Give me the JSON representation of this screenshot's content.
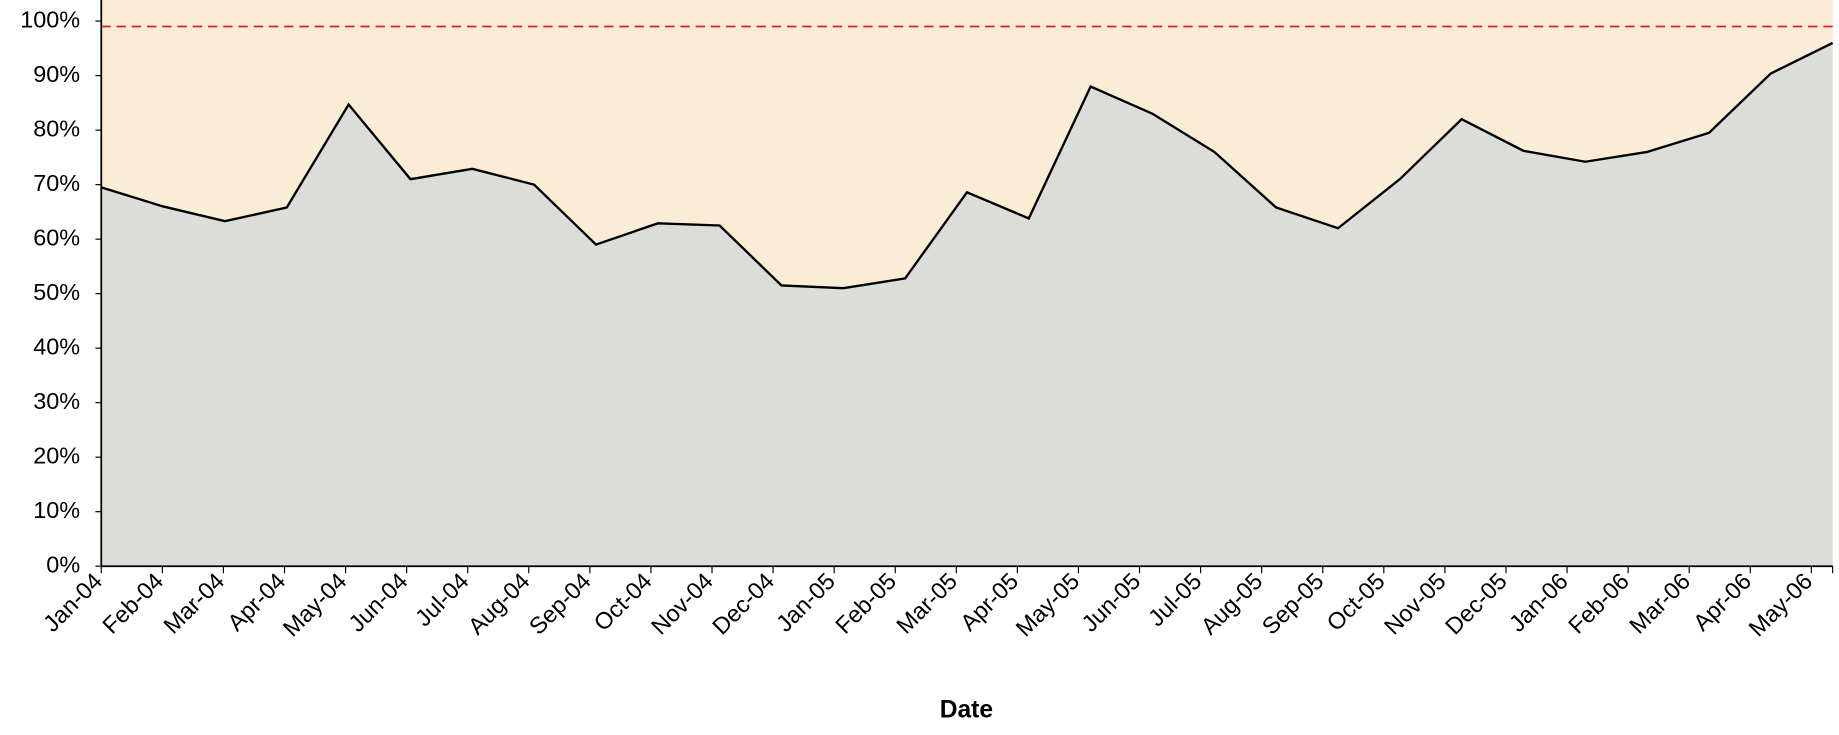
{
  "chart_data": {
    "type": "area",
    "x_label": "Date",
    "categories": [
      "Jan-04",
      "Feb-04",
      "Mar-04",
      "Apr-04",
      "May-04",
      "Jun-04",
      "Jul-04",
      "Aug-04",
      "Sep-04",
      "Oct-04",
      "Nov-04",
      "Dec-04",
      "Jan-05",
      "Feb-05",
      "Mar-05",
      "Apr-05",
      "May-05",
      "Jun-05",
      "Jul-05",
      "Aug-05",
      "Sep-05",
      "Oct-05",
      "Nov-05",
      "Dec-05",
      "Jan-06",
      "Feb-06",
      "Mar-06",
      "Apr-06",
      "May-06"
    ],
    "values": [
      69.5,
      66,
      63.3,
      65.8,
      84.7,
      71,
      72.9,
      70,
      59,
      62.9,
      62.5,
      51.5,
      51,
      52.8,
      68.6,
      63.8,
      88,
      83,
      76,
      65.8,
      62,
      71,
      82,
      76.2,
      74.2,
      76,
      79.5,
      90.4,
      96
    ],
    "color": "#dcdcd8",
    "line_color": "#000000",
    "background": "#fbecd6",
    "reference_line": {
      "value": 99,
      "color": "#e02020"
    },
    "ylim": [
      0,
      100
    ],
    "yticks": [
      {
        "value": 0,
        "label": "0%"
      },
      {
        "value": 10,
        "label": "10%"
      },
      {
        "value": 20,
        "label": "20%"
      },
      {
        "value": 30,
        "label": "30%"
      },
      {
        "value": 40,
        "label": "40%"
      },
      {
        "value": 50,
        "label": "50%"
      },
      {
        "value": 60,
        "label": "60%"
      },
      {
        "value": 70,
        "label": "70%"
      },
      {
        "value": 80,
        "label": "80%"
      },
      {
        "value": 90,
        "label": "90%"
      },
      {
        "value": 100,
        "label": "100%"
      }
    ]
  }
}
